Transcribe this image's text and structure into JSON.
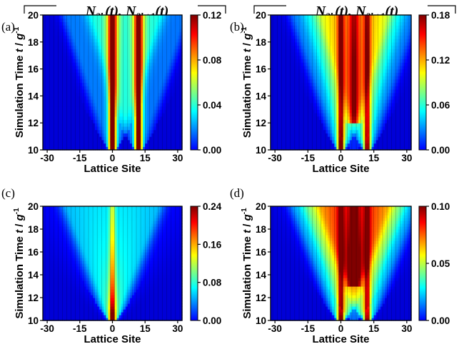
{
  "figure": {
    "header_label": "N2k(t), N2k+1(t)",
    "colormap": [
      "#00008f",
      "#0000ff",
      "#0080ff",
      "#00ffff",
      "#80ff80",
      "#ffff00",
      "#ff8000",
      "#ff0000",
      "#800000"
    ]
  },
  "chart_data": [
    {
      "type": "heatmap",
      "panel_label": "(a)",
      "xlabel": "Lattice Site",
      "ylabel": "Simulation Time t / g-1",
      "xlim": [
        -32,
        32
      ],
      "ylim": [
        10,
        20
      ],
      "xticks": [
        "-30",
        "-15",
        "0",
        "15",
        "30"
      ],
      "yticks": [
        "10",
        "12",
        "14",
        "16",
        "18",
        "20"
      ],
      "colorbar_ticks": [
        "0.00",
        "0.04",
        "0.08",
        "0.12"
      ],
      "colorbar_range": [
        0,
        0.12
      ],
      "features": [
        {
          "site": 0,
          "peak": 0.12,
          "spread": 0.05,
          "width": 1.3,
          "onset": 10.0
        },
        {
          "site": 12,
          "peak": 0.115,
          "spread": 0.05,
          "width": 1.3,
          "onset": 10.0
        }
      ]
    },
    {
      "type": "heatmap",
      "panel_label": "(b)",
      "xlabel": "Lattice Site",
      "ylabel": "Simulation Time t / g-1",
      "xlim": [
        -32,
        32
      ],
      "ylim": [
        10,
        20
      ],
      "xticks": [
        "-30",
        "-15",
        "0",
        "15",
        "30"
      ],
      "yticks": [
        "10",
        "12",
        "14",
        "16",
        "18",
        "20"
      ],
      "colorbar_ticks": [
        "0.00",
        "0.06",
        "0.12",
        "0.18"
      ],
      "colorbar_range": [
        0,
        0.18
      ],
      "features": [
        {
          "site": 0,
          "peak": 0.16,
          "spread": 0.6,
          "width": 1.3,
          "onset": 10.3
        },
        {
          "site": 12,
          "peak": 0.15,
          "spread": 0.6,
          "width": 1.3,
          "onset": 10.3
        },
        {
          "site": 6,
          "peak": 0.085,
          "spread": 0.45,
          "width": 2.0,
          "onset": 12.5
        }
      ]
    },
    {
      "type": "heatmap",
      "panel_label": "(c)",
      "xlabel": "Lattice Site",
      "ylabel": "Simulation Time t / g-1",
      "xlim": [
        -32,
        32
      ],
      "ylim": [
        10,
        20
      ],
      "xticks": [
        "-30",
        "-15",
        "0",
        "15",
        "30"
      ],
      "yticks": [
        "10",
        "12",
        "14",
        "16",
        "18",
        "20"
      ],
      "colorbar_ticks": [
        "0.00",
        "0.08",
        "0.16",
        "0.24"
      ],
      "colorbar_range": [
        0,
        0.24
      ],
      "features": [
        {
          "site": 0,
          "peak": 0.24,
          "spread": 1.25,
          "width": 1.3,
          "onset": 10.0
        }
      ]
    },
    {
      "type": "heatmap",
      "panel_label": "(d)",
      "xlabel": "Lattice Site",
      "ylabel": "Simulation Time t / g-1",
      "xlim": [
        -32,
        32
      ],
      "ylim": [
        10,
        20
      ],
      "xticks": [
        "-30",
        "-15",
        "0",
        "15",
        "30"
      ],
      "yticks": [
        "10",
        "12",
        "14",
        "16",
        "18",
        "20"
      ],
      "colorbar_ticks": [
        "0.00",
        "0.05",
        "0.10"
      ],
      "colorbar_range": [
        0,
        0.1
      ],
      "features": [
        {
          "site": 0,
          "peak": 0.09,
          "spread": 0.85,
          "width": 1.3,
          "onset": 10.0
        },
        {
          "site": 12,
          "peak": 0.085,
          "spread": 0.85,
          "width": 1.3,
          "onset": 10.0
        },
        {
          "site": 6,
          "peak": 0.088,
          "spread": 0.7,
          "width": 1.8,
          "onset": 13.5
        }
      ]
    }
  ]
}
